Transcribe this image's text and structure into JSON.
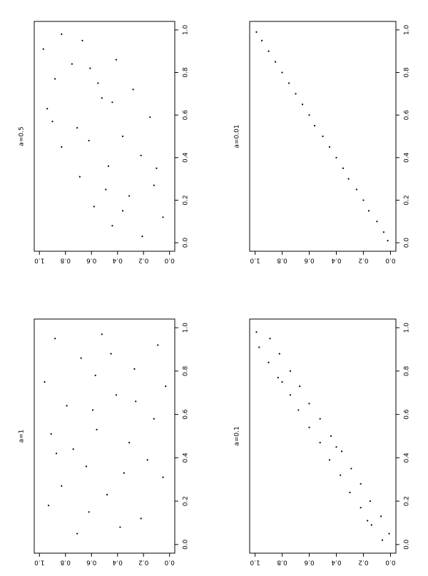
{
  "chart_data": [
    {
      "type": "scatter",
      "title": "a=1",
      "x": [
        0.05,
        0.12,
        0.18,
        0.23,
        0.31,
        0.36,
        0.42,
        0.47,
        0.53,
        0.58,
        0.64,
        0.69,
        0.75,
        0.81,
        0.86,
        0.92,
        0.97,
        0.08,
        0.27,
        0.39,
        0.51,
        0.62,
        0.73,
        0.88,
        0.15,
        0.44,
        0.66,
        0.95,
        0.33,
        0.78
      ],
      "y": [
        0.71,
        0.22,
        0.93,
        0.48,
        0.05,
        0.64,
        0.87,
        0.31,
        0.56,
        0.12,
        0.79,
        0.41,
        0.96,
        0.27,
        0.68,
        0.09,
        0.52,
        0.38,
        0.83,
        0.17,
        0.91,
        0.59,
        0.03,
        0.45,
        0.62,
        0.74,
        0.26,
        0.88,
        0.35,
        0.57
      ],
      "xlim": [
        -0.04,
        1.04
      ],
      "ylim": [
        -0.04,
        1.04
      ],
      "xticks": [
        {
          "value": 0,
          "label": "0.0"
        },
        0.2,
        0.4,
        0.6,
        0.8,
        {
          "value": 1,
          "label": "1.0"
        }
      ],
      "yticks": [
        {
          "value": 0,
          "label": "0.0"
        },
        0.2,
        0.4,
        0.6,
        0.8,
        {
          "value": 1,
          "label": "1.0"
        }
      ],
      "color": "#000000"
    },
    {
      "type": "scatter",
      "title": "a=0.5",
      "x": [
        0.03,
        0.08,
        0.12,
        0.17,
        0.22,
        0.27,
        0.31,
        0.36,
        0.41,
        0.45,
        0.5,
        0.54,
        0.59,
        0.63,
        0.68,
        0.72,
        0.77,
        0.82,
        0.86,
        0.91,
        0.95,
        0.98,
        0.15,
        0.35,
        0.48,
        0.66,
        0.84,
        0.25,
        0.57,
        0.75
      ],
      "y": [
        0.21,
        0.44,
        0.05,
        0.58,
        0.31,
        0.12,
        0.69,
        0.47,
        0.22,
        0.83,
        0.36,
        0.71,
        0.15,
        0.94,
        0.52,
        0.28,
        0.88,
        0.61,
        0.41,
        0.97,
        0.67,
        0.83,
        0.36,
        0.1,
        0.62,
        0.44,
        0.75,
        0.49,
        0.9,
        0.55
      ],
      "xlim": [
        -0.04,
        1.04
      ],
      "ylim": [
        -0.04,
        1.04
      ],
      "xticks": [
        {
          "value": 0,
          "label": "0.0"
        },
        0.2,
        0.4,
        0.6,
        0.8,
        {
          "value": 1,
          "label": "1.0"
        }
      ],
      "yticks": [
        {
          "value": 0,
          "label": "0.0"
        },
        0.2,
        0.4,
        0.6,
        0.8,
        {
          "value": 1,
          "label": "1.0"
        }
      ],
      "color": "#000000"
    },
    {
      "type": "scatter",
      "title": "a=0.1",
      "x": [
        0.02,
        0.05,
        0.09,
        0.13,
        0.17,
        0.2,
        0.24,
        0.28,
        0.32,
        0.35,
        0.39,
        0.43,
        0.47,
        0.5,
        0.54,
        0.58,
        0.62,
        0.65,
        0.69,
        0.73,
        0.77,
        0.8,
        0.84,
        0.88,
        0.91,
        0.95,
        0.98,
        0.11,
        0.45,
        0.75
      ],
      "y": [
        0.06,
        0.01,
        0.14,
        0.07,
        0.22,
        0.15,
        0.3,
        0.22,
        0.37,
        0.29,
        0.45,
        0.36,
        0.52,
        0.44,
        0.6,
        0.52,
        0.68,
        0.6,
        0.74,
        0.67,
        0.83,
        0.74,
        0.9,
        0.82,
        0.97,
        0.89,
        0.99,
        0.17,
        0.4,
        0.8
      ],
      "xlim": [
        -0.04,
        1.04
      ],
      "ylim": [
        -0.04,
        1.04
      ],
      "xticks": [
        {
          "value": 0,
          "label": "0.0"
        },
        0.2,
        0.4,
        0.6,
        0.8,
        {
          "value": 1,
          "label": "1.0"
        }
      ],
      "yticks": [
        {
          "value": 0,
          "label": "0.0"
        },
        0.2,
        0.4,
        0.6,
        0.8,
        {
          "value": 1,
          "label": "1.0"
        }
      ],
      "color": "#000000"
    },
    {
      "type": "scatter",
      "title": "a=0.01",
      "x": [
        0.01,
        0.05,
        0.1,
        0.15,
        0.2,
        0.25,
        0.3,
        0.35,
        0.4,
        0.45,
        0.5,
        0.55,
        0.6,
        0.65,
        0.7,
        0.75,
        0.8,
        0.85,
        0.9,
        0.95,
        0.99
      ],
      "y": [
        0.02,
        0.05,
        0.1,
        0.16,
        0.2,
        0.25,
        0.31,
        0.35,
        0.4,
        0.45,
        0.5,
        0.56,
        0.6,
        0.65,
        0.7,
        0.75,
        0.8,
        0.85,
        0.9,
        0.95,
        0.99
      ],
      "xlim": [
        -0.04,
        1.04
      ],
      "ylim": [
        -0.04,
        1.04
      ],
      "xticks": [
        {
          "value": 0,
          "label": "0.0"
        },
        0.2,
        0.4,
        0.6,
        0.8,
        {
          "value": 1,
          "label": "1.0"
        }
      ],
      "yticks": [
        {
          "value": 0,
          "label": "0.0"
        },
        0.2,
        0.4,
        0.6,
        0.8,
        {
          "value": 1,
          "label": "1.0"
        }
      ],
      "color": "#000000"
    }
  ]
}
